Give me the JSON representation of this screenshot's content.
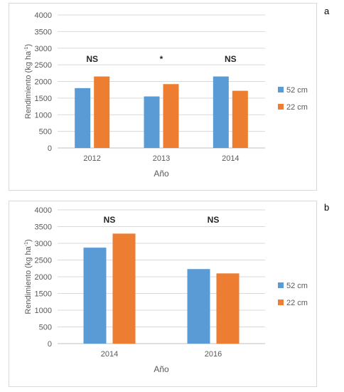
{
  "figure": {
    "panel_a_label": "a",
    "panel_b_label": "b"
  },
  "chart_data": [
    {
      "type": "bar",
      "panel": "a",
      "categories": [
        "2012",
        "2013",
        "2014"
      ],
      "series": [
        {
          "name": "52 cm",
          "values": [
            1800,
            1550,
            2150
          ],
          "color": "#5b9bd5"
        },
        {
          "name": "22 cm",
          "values": [
            2150,
            1920,
            1720
          ],
          "color": "#ed7d31"
        }
      ],
      "significance": [
        "NS",
        "*",
        "NS"
      ],
      "ylim": [
        0,
        4000
      ],
      "yticks": [
        "0",
        "500",
        "1000",
        "1500",
        "2000",
        "2500",
        "3000",
        "3500",
        "4000"
      ],
      "xlabel": "Año",
      "ylabel": "Rendimiento (kg ha-1)",
      "ylabel_main": "Rendimiento (kg ha",
      "ylabel_sup": "-1",
      "ylabel_close": ")",
      "grid": true,
      "legend": "right"
    },
    {
      "type": "bar",
      "panel": "b",
      "categories": [
        "2014",
        "2016"
      ],
      "series": [
        {
          "name": "52 cm",
          "values": [
            2870,
            2230
          ],
          "color": "#5b9bd5"
        },
        {
          "name": "22 cm",
          "values": [
            3290,
            2100
          ],
          "color": "#ed7d31"
        }
      ],
      "significance": [
        "NS",
        "NS"
      ],
      "ylim": [
        0,
        4000
      ],
      "yticks": [
        "0",
        "500",
        "1000",
        "1500",
        "2000",
        "2500",
        "3000",
        "3500",
        "4000"
      ],
      "xlabel": "Año",
      "ylabel": "Rendimiento (kg ha-1)",
      "ylabel_main": "Rendimiento (kg ha",
      "ylabel_sup": "-1",
      "ylabel_close": ")",
      "grid": true,
      "legend": "right"
    }
  ]
}
